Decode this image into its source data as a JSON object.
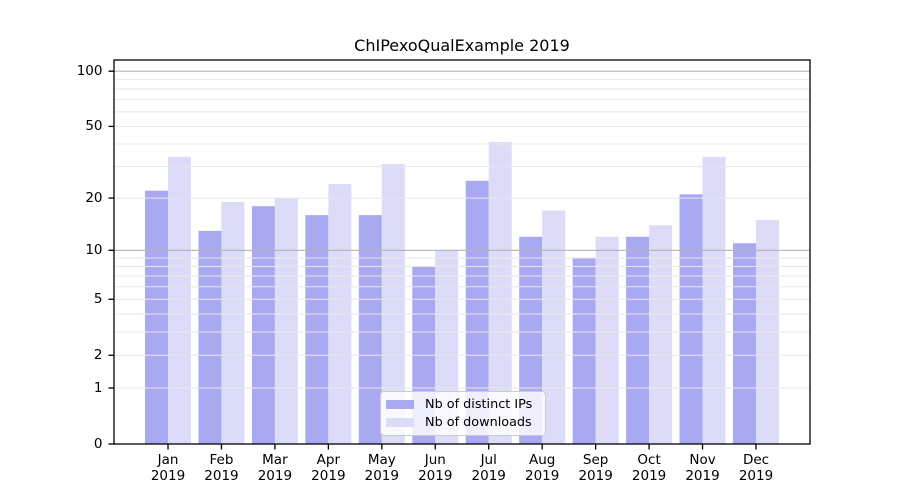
{
  "chart_data": {
    "type": "bar",
    "title": "ChIPexoQualExample 2019",
    "x": {
      "months": [
        "Jan",
        "Feb",
        "Mar",
        "Apr",
        "May",
        "Jun",
        "Jul",
        "Aug",
        "Sep",
        "Oct",
        "Nov",
        "Dec"
      ],
      "year": "2019"
    },
    "series": [
      {
        "name": "Nb of distinct IPs",
        "color": "#a9a9f2",
        "values": [
          22,
          13,
          18,
          16,
          16,
          8,
          25,
          12,
          9,
          12,
          21,
          11
        ]
      },
      {
        "name": "Nb of downloads",
        "color": "#dcdcf9",
        "values": [
          34,
          19,
          20,
          24,
          31,
          10,
          41,
          17,
          12,
          14,
          34,
          15
        ]
      }
    ],
    "yaxis": {
      "scale": "log1p",
      "tick_labels": [
        0,
        1,
        2,
        5,
        10,
        20,
        50,
        100
      ],
      "minor_gridlines": [
        1,
        2,
        3,
        4,
        5,
        6,
        7,
        8,
        9,
        20,
        30,
        40,
        50,
        60,
        70,
        80,
        90
      ],
      "major_gridlines": [
        10,
        100
      ],
      "range": [
        0,
        115
      ]
    },
    "legend_position": "lower center",
    "grid": true
  },
  "colors": {
    "background": "#ffffff",
    "axis": "#000000",
    "minor_grid": "#e7e7e7",
    "major_grid": "#b3b3b3",
    "legend_border": "#cccccc",
    "text": "#000000"
  }
}
